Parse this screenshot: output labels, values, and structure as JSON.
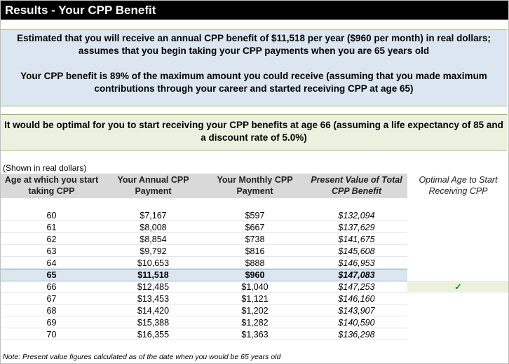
{
  "header": {
    "title": "Results - Your CPP Benefit"
  },
  "summary": {
    "estimate": "Estimated that you will receive an annual CPP benefit of $11,518 per year ($960 per month) in real dollars; assumes that you begin taking your CPP payments when you are 65 years old",
    "percent_of_max": "Your CPP benefit is 89% of the maximum amount you could receive (assuming that you made maximum contributions through your career and started receiving CPP at age 65)",
    "optimal": "It would be optimal for you to start receiving your CPP benefits at age 66 (assuming a life expectancy of 85 and a discount rate of 5.0%)"
  },
  "table": {
    "caption": "(Shown in real dollars)",
    "columns": [
      "Age at which you start taking CPP",
      "Your Annual CPP Payment",
      "Your Monthly CPP Payment",
      "Present Value of Total CPP Benefit",
      "Optimal Age to Start Receiving CPP"
    ],
    "rows": [
      [
        "60",
        "$7,167",
        "$597",
        "$132,094"
      ],
      [
        "61",
        "$8,008",
        "$667",
        "$137,629"
      ],
      [
        "62",
        "$8,854",
        "$738",
        "$141,675"
      ],
      [
        "63",
        "$9,792",
        "$816",
        "$145,608"
      ],
      [
        "64",
        "$10,653",
        "$888",
        "$146,953"
      ],
      [
        "65",
        "$11,518",
        "$960",
        "$147,083"
      ],
      [
        "66",
        "$12,485",
        "$1,040",
        "$147,253",
        "✓"
      ],
      [
        "67",
        "$13,453",
        "$1,121",
        "$146,160"
      ],
      [
        "68",
        "$14,420",
        "$1,202",
        "$143,907"
      ],
      [
        "69",
        "$15,388",
        "$1,282",
        "$140,590"
      ],
      [
        "70",
        "$16,355",
        "$1,363",
        "$136,298"
      ]
    ]
  },
  "note": "Note: Present value figures calculated as of the date when you would be 65 years old"
}
